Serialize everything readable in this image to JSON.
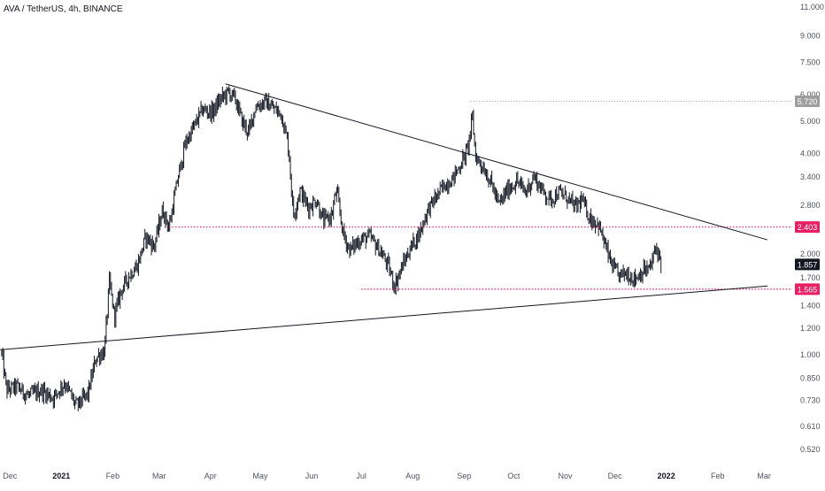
{
  "header": {
    "symbol_title": "AVA / TetherUS, 4h, BINANCE"
  },
  "colors": {
    "background": "#ffffff",
    "candles": "#131722",
    "trendline": "#131722",
    "resistance": "#e91e63",
    "support": "#e91e63",
    "last_price_bg": "#131722",
    "reference_bg": "#9e9e9e",
    "axis_text": "#50535e"
  },
  "chart_data": {
    "type": "candlestick",
    "title": "AVA / TetherUS, 4h, BINANCE",
    "xlabel": "",
    "ylabel": "",
    "y_scale": "log",
    "ylim": [
      0.47,
      11.5
    ],
    "xlim": [
      "2020-11-25",
      "2022-03-18"
    ],
    "grid": false,
    "y_ticks": [
      "11.000",
      "9.000",
      "7.500",
      "6.000",
      "5.000",
      "4.000",
      "3.400",
      "2.800",
      "2.000",
      "1.700",
      "1.400",
      "1.200",
      "1.000",
      "0.850",
      "0.730",
      "0.610",
      "0.520"
    ],
    "x_ticks": [
      {
        "label": "Dec",
        "date": "2020-12-01"
      },
      {
        "label": "2021",
        "date": "2021-01-01"
      },
      {
        "label": "Feb",
        "date": "2021-02-01"
      },
      {
        "label": "Mar",
        "date": "2021-03-01"
      },
      {
        "label": "Apr",
        "date": "2021-04-01"
      },
      {
        "label": "May",
        "date": "2021-05-01"
      },
      {
        "label": "Jun",
        "date": "2021-06-01"
      },
      {
        "label": "Jul",
        "date": "2021-07-01"
      },
      {
        "label": "Aug",
        "date": "2021-08-01"
      },
      {
        "label": "Sep",
        "date": "2021-09-01"
      },
      {
        "label": "Oct",
        "date": "2021-10-01"
      },
      {
        "label": "Nov",
        "date": "2021-11-01"
      },
      {
        "label": "Dec",
        "date": "2021-12-01"
      },
      {
        "label": "2022",
        "date": "2022-01-01"
      },
      {
        "label": "Feb",
        "date": "2022-02-01"
      },
      {
        "label": "Mar",
        "date": "2022-03-01"
      }
    ],
    "price_path": [
      [
        "2020-11-26",
        1.0
      ],
      [
        "2020-11-29",
        0.78
      ],
      [
        "2020-12-05",
        0.8
      ],
      [
        "2020-12-12",
        0.75
      ],
      [
        "2020-12-20",
        0.78
      ],
      [
        "2020-12-27",
        0.74
      ],
      [
        "2021-01-03",
        0.82
      ],
      [
        "2021-01-10",
        0.7
      ],
      [
        "2021-01-17",
        0.76
      ],
      [
        "2021-01-22",
        0.98
      ],
      [
        "2021-01-27",
        1.02
      ],
      [
        "2021-01-30",
        1.65
      ],
      [
        "2021-02-02",
        1.3
      ],
      [
        "2021-02-06",
        1.55
      ],
      [
        "2021-02-11",
        1.72
      ],
      [
        "2021-02-16",
        1.85
      ],
      [
        "2021-02-21",
        2.25
      ],
      [
        "2021-02-26",
        2.1
      ],
      [
        "2021-03-03",
        2.7
      ],
      [
        "2021-03-07",
        2.4
      ],
      [
        "2021-03-12",
        3.3
      ],
      [
        "2021-03-17",
        4.3
      ],
      [
        "2021-03-22",
        4.8
      ],
      [
        "2021-03-27",
        5.4
      ],
      [
        "2021-04-02",
        5.3
      ],
      [
        "2021-04-07",
        5.8
      ],
      [
        "2021-04-12",
        6.1
      ],
      [
        "2021-04-16",
        5.8
      ],
      [
        "2021-04-20",
        5.0
      ],
      [
        "2021-04-24",
        4.6
      ],
      [
        "2021-04-28",
        5.5
      ],
      [
        "2021-05-04",
        5.7
      ],
      [
        "2021-05-10",
        5.4
      ],
      [
        "2021-05-14",
        5.2
      ],
      [
        "2021-05-18",
        4.2
      ],
      [
        "2021-05-21",
        2.6
      ],
      [
        "2021-05-25",
        3.1
      ],
      [
        "2021-05-30",
        2.75
      ],
      [
        "2021-06-04",
        2.9
      ],
      [
        "2021-06-08",
        2.5
      ],
      [
        "2021-06-13",
        2.6
      ],
      [
        "2021-06-16",
        3.1
      ],
      [
        "2021-06-20",
        2.3
      ],
      [
        "2021-06-24",
        2.05
      ],
      [
        "2021-06-30",
        2.2
      ],
      [
        "2021-07-06",
        2.25
      ],
      [
        "2021-07-12",
        2.05
      ],
      [
        "2021-07-17",
        1.85
      ],
      [
        "2021-07-21",
        1.6
      ],
      [
        "2021-07-26",
        1.85
      ],
      [
        "2021-07-31",
        2.1
      ],
      [
        "2021-08-05",
        2.3
      ],
      [
        "2021-08-10",
        2.7
      ],
      [
        "2021-08-15",
        2.95
      ],
      [
        "2021-08-20",
        3.2
      ],
      [
        "2021-08-25",
        3.35
      ],
      [
        "2021-08-30",
        3.7
      ],
      [
        "2021-09-03",
        4.1
      ],
      [
        "2021-09-06",
        5.1
      ],
      [
        "2021-09-08",
        3.9
      ],
      [
        "2021-09-13",
        3.6
      ],
      [
        "2021-09-18",
        3.2
      ],
      [
        "2021-09-22",
        2.8
      ],
      [
        "2021-09-27",
        3.1
      ],
      [
        "2021-10-03",
        3.3
      ],
      [
        "2021-10-08",
        3.05
      ],
      [
        "2021-10-13",
        3.4
      ],
      [
        "2021-10-18",
        3.1
      ],
      [
        "2021-10-23",
        2.9
      ],
      [
        "2021-10-28",
        3.05
      ],
      [
        "2021-11-02",
        2.95
      ],
      [
        "2021-11-07",
        2.75
      ],
      [
        "2021-11-11",
        2.9
      ],
      [
        "2021-11-16",
        2.55
      ],
      [
        "2021-11-21",
        2.45
      ],
      [
        "2021-11-26",
        2.05
      ],
      [
        "2021-11-29",
        1.85
      ],
      [
        "2021-12-03",
        1.72
      ],
      [
        "2021-12-08",
        1.75
      ],
      [
        "2021-12-13",
        1.68
      ],
      [
        "2021-12-18",
        1.78
      ],
      [
        "2021-12-22",
        1.8
      ],
      [
        "2021-12-26",
        2.1
      ],
      [
        "2021-12-29",
        1.86
      ]
    ],
    "trendlines": [
      {
        "name": "descending-resistance",
        "from": [
          "2021-04-10",
          6.45
        ],
        "to": [
          "2022-03-03",
          2.2
        ]
      },
      {
        "name": "ascending-support",
        "from": [
          "2020-11-25",
          1.03
        ],
        "to": [
          "2022-03-03",
          1.6
        ]
      }
    ],
    "horizontal_levels": [
      {
        "name": "resistance-level",
        "value": 2.403,
        "label": "2.403",
        "from": "2021-03-07",
        "style": "dotted"
      },
      {
        "name": "support-level",
        "value": 1.565,
        "label": "1.565",
        "from": "2021-07-01",
        "style": "dotted"
      },
      {
        "name": "reference-level",
        "value": 5.72,
        "label": "5.720",
        "from": "2021-09-05",
        "style": "dotted-gray"
      }
    ],
    "last_price": {
      "value": 1.857,
      "label": "1.857"
    }
  }
}
